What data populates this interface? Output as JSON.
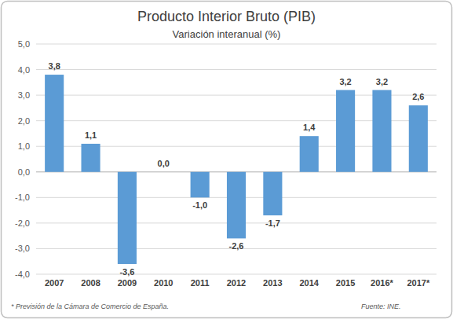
{
  "chart_data": {
    "type": "bar",
    "title": "Producto Interior Bruto (PIB)",
    "subtitle": "Variación interanual (%)",
    "categories": [
      "2007",
      "2008",
      "2009",
      "2010",
      "2011",
      "2012",
      "2013",
      "2014",
      "2015",
      "2016*",
      "2017*"
    ],
    "values": [
      3.8,
      1.1,
      -3.6,
      0.0,
      -1.0,
      -2.6,
      -1.7,
      1.4,
      3.2,
      3.2,
      2.6
    ],
    "value_labels": [
      "3,8",
      "1,1",
      "-3,6",
      "0,0",
      "-1,0",
      "-2,6",
      "-1,7",
      "1,4",
      "3,2",
      "3,2",
      "2,6"
    ],
    "color": "#5b9bd5",
    "ylim": [
      -4,
      5
    ],
    "yticks": [
      {
        "value": -4,
        "label": "-4,0"
      },
      {
        "value": -3,
        "label": "-3,0"
      },
      {
        "value": -2,
        "label": "-2,0"
      },
      {
        "value": -1,
        "label": "-1,0"
      },
      {
        "value": 0,
        "label": "0,0"
      },
      {
        "value": 1,
        "label": "1,0"
      },
      {
        "value": 2,
        "label": "2,0"
      },
      {
        "value": 3,
        "label": "3,0"
      },
      {
        "value": 4,
        "label": "4,0"
      },
      {
        "value": 5,
        "label": "5,0"
      }
    ],
    "grid": true,
    "data_labels": true,
    "annotations": [
      "* Previsión de la Cámara de Comercio de España.",
      "Fuente: INE."
    ]
  }
}
